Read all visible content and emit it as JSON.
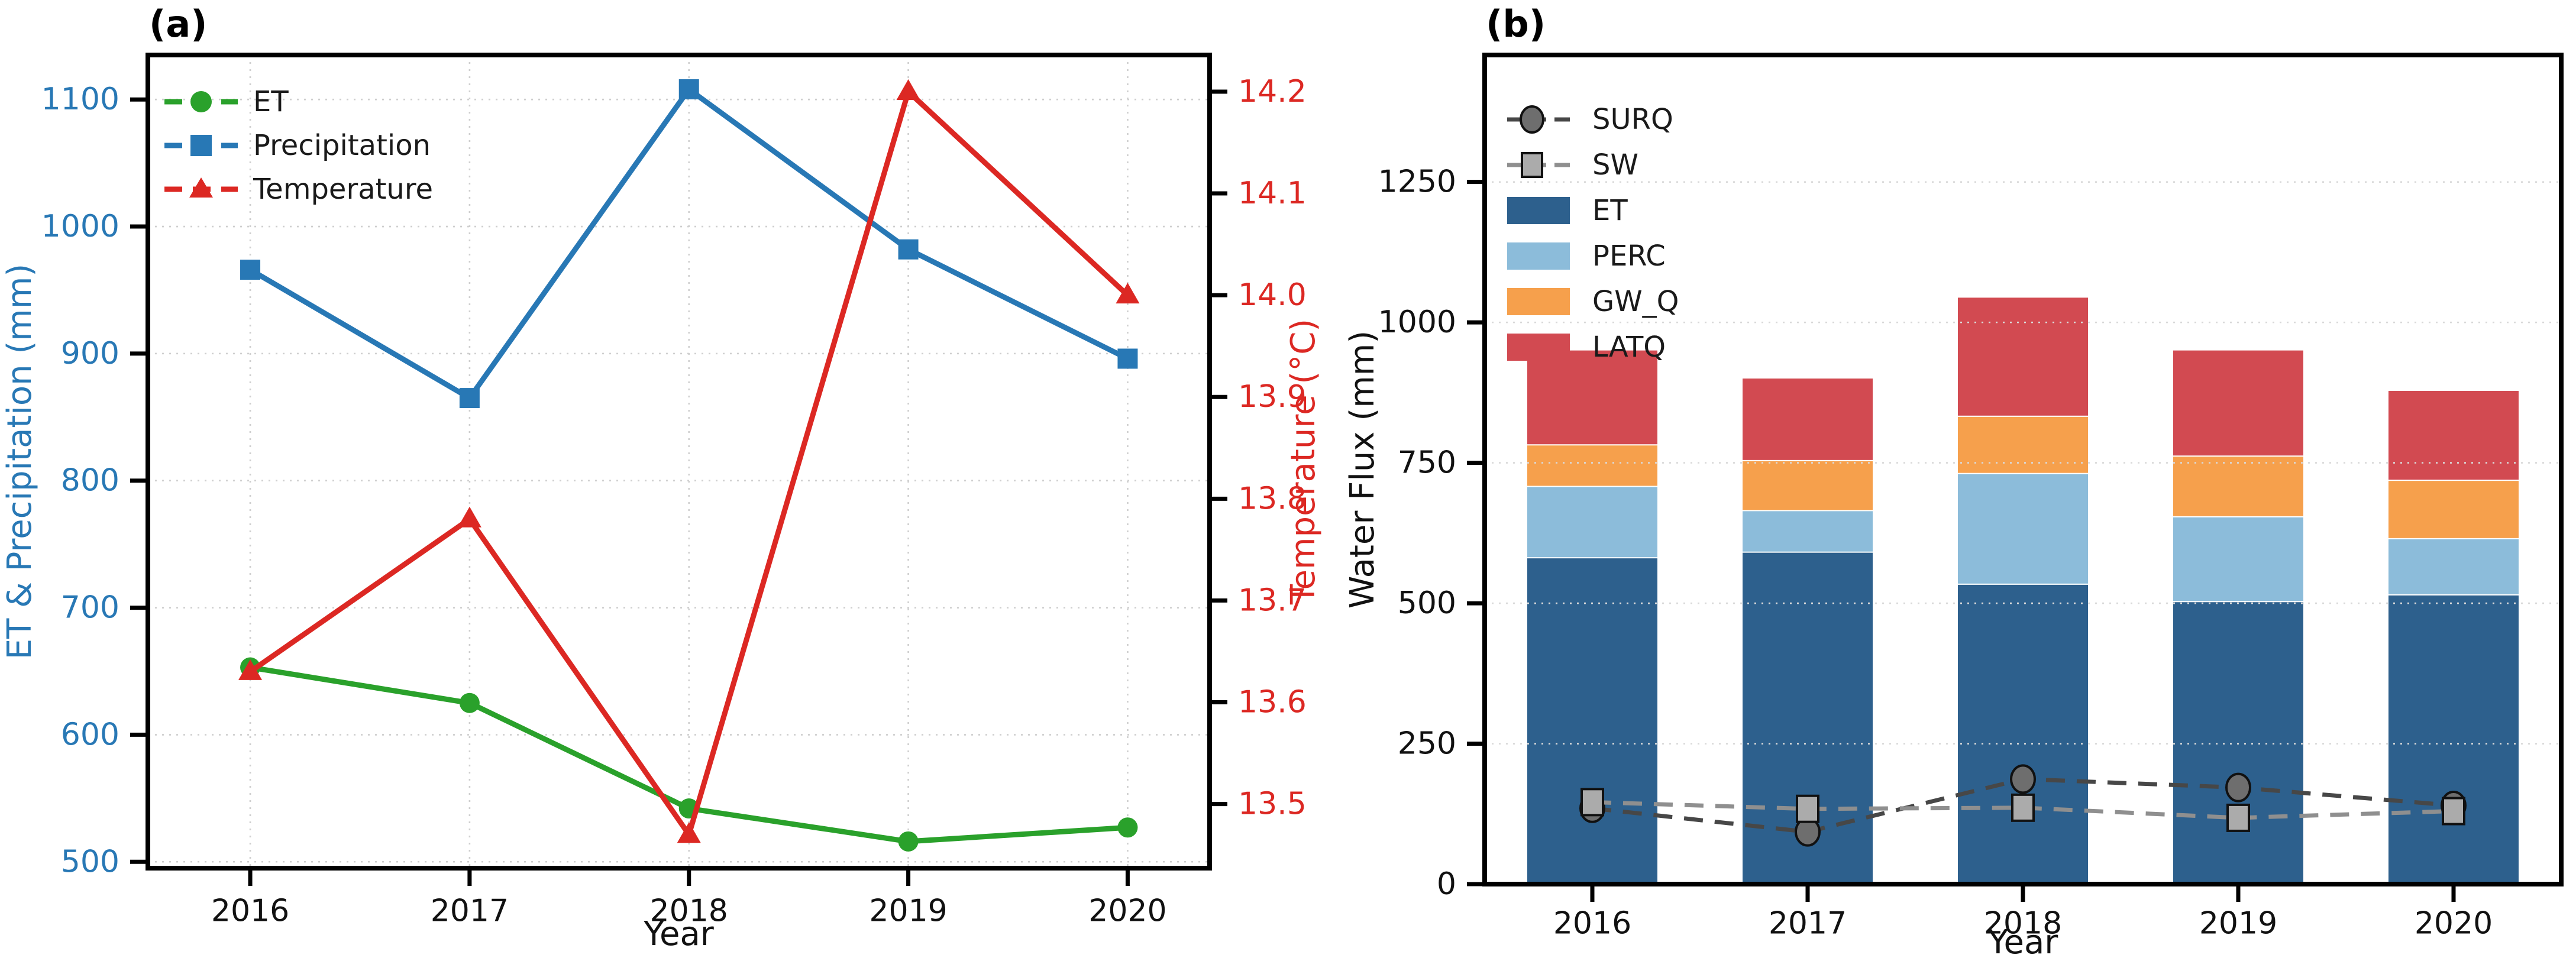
{
  "figure": {
    "background": "#ffffff",
    "xlabel": "Year"
  },
  "chart_data": [
    {
      "type": "line",
      "panel": "a",
      "title": "(a)",
      "x": {
        "label": "Year",
        "categories": [
          "2016",
          "2017",
          "2018",
          "2019",
          "2020"
        ]
      },
      "y_left": {
        "label": "ET & Precipitation (mm)",
        "ticks": [
          "500",
          "600",
          "700",
          "800",
          "900",
          "1000",
          "1100"
        ],
        "tick_values": [
          500,
          600,
          700,
          800,
          900,
          1000,
          1100
        ],
        "range": [
          495,
          1135
        ],
        "color": "#2878b5"
      },
      "y_right": {
        "label": "Temperature (°C)",
        "ticks": [
          "13.5",
          "13.6",
          "13.7",
          "13.8",
          "13.9",
          "14.0",
          "14.1",
          "14.2"
        ],
        "tick_values": [
          13.5,
          13.6,
          13.7,
          13.8,
          13.9,
          14.0,
          14.1,
          14.2
        ],
        "range": [
          13.437,
          14.236
        ],
        "color": "#dc2823"
      },
      "grid": true,
      "legend_position": "top-left",
      "series": [
        {
          "name": "ET",
          "axis": "left",
          "marker": "circle",
          "color": "#2aa12b",
          "values": [
            653,
            625,
            542,
            516,
            527
          ]
        },
        {
          "name": "Precipitation",
          "axis": "left",
          "marker": "square",
          "color": "#2878b5",
          "values": [
            966,
            865,
            1108,
            982,
            896
          ]
        },
        {
          "name": "Temperature",
          "axis": "right",
          "marker": "triangle",
          "color": "#dc2823",
          "values": [
            13.63,
            13.78,
            13.47,
            14.2,
            14.0
          ]
        }
      ]
    },
    {
      "type": "bar",
      "panel": "b",
      "title": "(b)",
      "x": {
        "label": "Year",
        "categories": [
          "2016",
          "2017",
          "2018",
          "2019",
          "2020"
        ]
      },
      "y": {
        "label": "Water Flux (mm)",
        "ticks": [
          "0",
          "250",
          "500",
          "750",
          "1000",
          "1250"
        ],
        "tick_values": [
          0,
          250,
          500,
          750,
          1000,
          1250
        ],
        "range": [
          0,
          1476
        ]
      },
      "grid": "horizontal",
      "legend_position": "top-left",
      "stack_series": [
        {
          "name": "ET",
          "color": "#2d608d",
          "values": [
            582,
            592,
            535,
            504,
            516
          ]
        },
        {
          "name": "PERC",
          "color": "#8cbcda",
          "values": [
            127,
            74,
            197,
            151,
            100
          ]
        },
        {
          "name": "GW_Q",
          "color": "#f6a04c",
          "values": [
            74,
            89,
            102,
            108,
            104
          ]
        },
        {
          "name": "LATQ",
          "color": "#d24a51",
          "values": [
            167,
            145,
            210,
            187,
            158
          ]
        }
      ],
      "line_series": [
        {
          "name": "SURQ",
          "marker": "circle",
          "line_color": "#474747",
          "marker_fill": "#6e6e6e",
          "values": [
            135,
            93,
            187,
            172,
            140
          ]
        },
        {
          "name": "SW",
          "marker": "square",
          "line_color": "#8f8f8f",
          "marker_fill": "#ababab",
          "values": [
            146,
            134,
            136,
            118,
            130
          ]
        }
      ]
    }
  ]
}
